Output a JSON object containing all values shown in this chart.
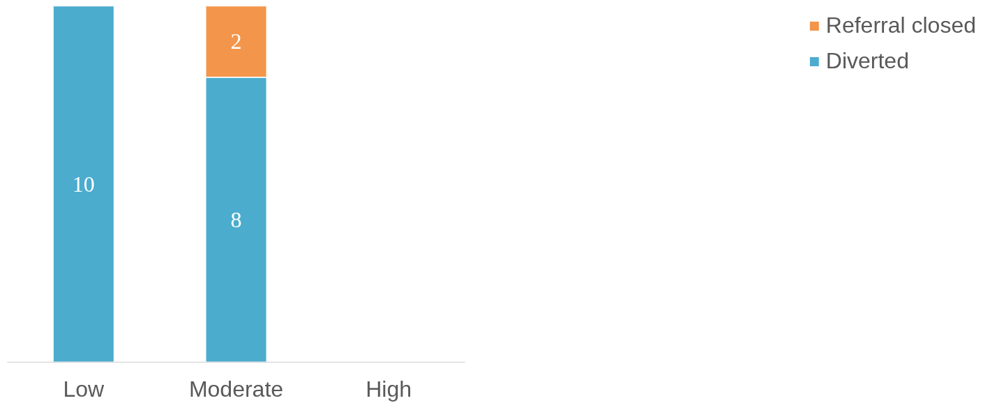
{
  "chart_data": {
    "type": "bar",
    "stacked": true,
    "categories": [
      "Low",
      "Moderate",
      "High"
    ],
    "series": [
      {
        "name": "Diverted",
        "color": "#4bacce",
        "values": [
          10,
          8,
          null
        ]
      },
      {
        "name": "Referral closed",
        "color": "#f3954a",
        "values": [
          null,
          2,
          null
        ]
      }
    ],
    "data_labels": true,
    "legend": "right",
    "grid": false
  }
}
